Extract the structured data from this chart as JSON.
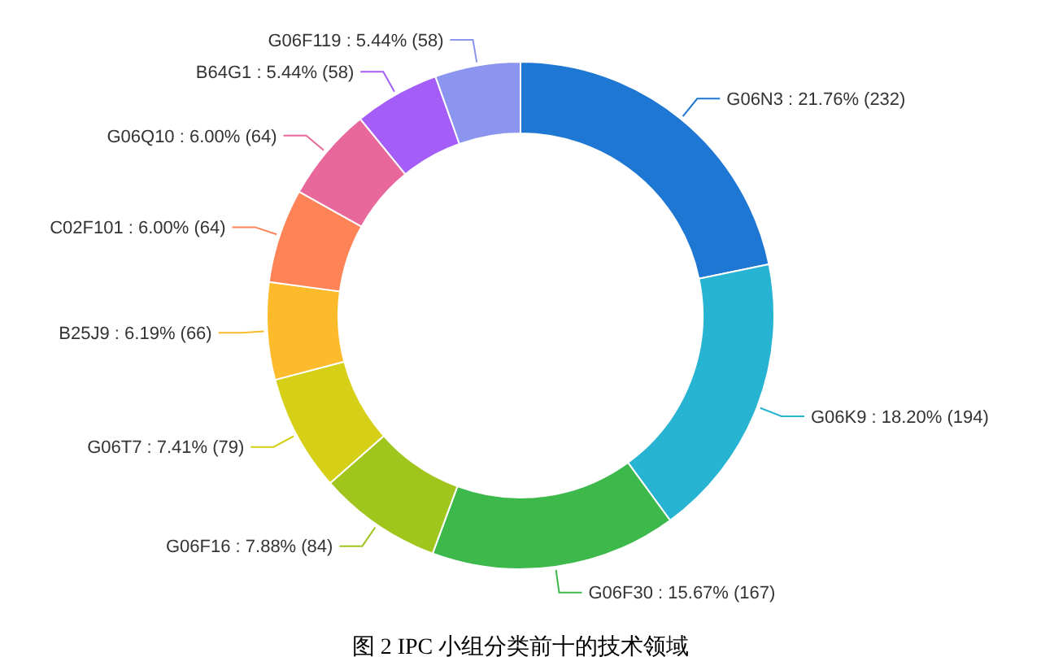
{
  "chart_data": {
    "type": "donut",
    "title": "图 2 IPC 小组分类前十的技术领域",
    "categories": [
      "G06N3",
      "G06K9",
      "G06F30",
      "G06F16",
      "G06T7",
      "B25J9",
      "C02F101",
      "G06Q10",
      "B64G1",
      "G06F119"
    ],
    "values": [
      232,
      194,
      167,
      84,
      79,
      66,
      64,
      64,
      58,
      58
    ],
    "value_labels": [
      "21.76% (232)",
      "18.20% (194)",
      "15.67% (167)",
      "7.88% (84)",
      "7.41% (79)",
      "6.19% (66)",
      "6.00% (64)",
      "6.00% (64)",
      "5.44% (58)",
      "5.44% (58)"
    ],
    "colors": [
      "#1f77d4",
      "#26b4d2",
      "#3db94c",
      "#a0c51c",
      "#d5cf17",
      "#fdbb2b",
      "#fe8458",
      "#e8689b",
      "#a45ef7",
      "#8b94ee"
    ]
  }
}
